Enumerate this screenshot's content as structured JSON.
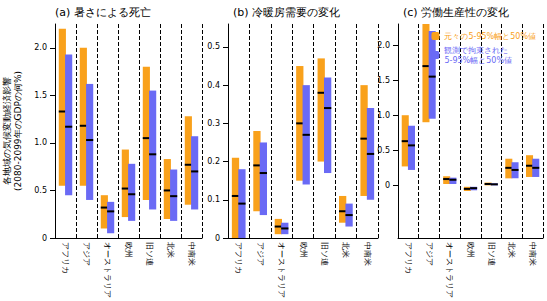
{
  "chart_data": [
    {
      "type": "bar",
      "title": "(a) 暑さによる死亡",
      "ylabel": "各地域の気候変動経済影響\n(2080-2099年のGDPの何%)",
      "categories": [
        "アフリカ",
        "アジア",
        "オーストラリア",
        "欧州",
        "旧ソ連",
        "北米",
        "中南米"
      ],
      "series": [
        {
          "color": "#f9a11b",
          "low": [
            0.55,
            0.55,
            0.1,
            0.22,
            0.4,
            0.2,
            0.35
          ],
          "median": [
            1.33,
            1.18,
            0.32,
            0.52,
            1.05,
            0.5,
            0.77
          ],
          "high": [
            2.2,
            2.0,
            0.45,
            0.93,
            1.8,
            0.83,
            1.28
          ]
        },
        {
          "color": "#6a6af5",
          "low": [
            0.45,
            0.4,
            0.05,
            0.18,
            0.3,
            0.18,
            0.3
          ],
          "median": [
            1.17,
            1.03,
            0.28,
            0.46,
            0.88,
            0.44,
            0.7
          ],
          "high": [
            1.93,
            1.62,
            0.38,
            0.78,
            1.55,
            0.72,
            1.07
          ]
        }
      ],
      "ylim": [
        0,
        2.25
      ],
      "yticks": [
        0,
        0.5,
        {
          "value": 1,
          "label": "1.0"
        },
        1.5,
        {
          "value": 2,
          "label": "2.0"
        }
      ],
      "grid": false
    },
    {
      "type": "bar",
      "title": "(b) 冷暖房需要の変化",
      "categories": [
        "アフリカ",
        "アジア",
        "オーストラリア",
        "欧州",
        "旧ソ連",
        "北米",
        "中南米"
      ],
      "series": [
        {
          "color": "#f9a11b",
          "low": [
            0.0,
            0.07,
            0.01,
            0.15,
            0.2,
            0.04,
            0.11
          ],
          "median": [
            0.11,
            0.19,
            0.03,
            0.3,
            0.38,
            0.07,
            0.26
          ],
          "high": [
            0.21,
            0.28,
            0.05,
            0.45,
            0.47,
            0.11,
            0.4
          ]
        },
        {
          "color": "#6a6af5",
          "low": [
            0.0,
            0.06,
            0.01,
            0.14,
            0.17,
            0.03,
            0.1
          ],
          "median": [
            0.09,
            0.17,
            0.025,
            0.27,
            0.34,
            0.06,
            0.22
          ],
          "high": [
            0.18,
            0.25,
            0.04,
            0.4,
            0.42,
            0.09,
            0.34
          ]
        }
      ],
      "ylim": [
        0,
        0.56
      ],
      "yticks": [
        0,
        0.1,
        0.2,
        0.3,
        0.4,
        0.5
      ],
      "grid": false
    },
    {
      "type": "bar",
      "title": "(c) 労働生産性の変化",
      "categories": [
        "アフリカ",
        "アジア",
        "オーストラリア",
        "欧州",
        "旧ソ連",
        "北米",
        "中南米"
      ],
      "series": [
        {
          "name": "元々の5-95%幅と50%値",
          "color": "#f9a11b",
          "low": [
            0.27,
            0.9,
            0.02,
            -0.08,
            0.0,
            0.1,
            0.12
          ],
          "median": [
            0.63,
            1.7,
            0.09,
            -0.05,
            0.02,
            0.25,
            0.28
          ],
          "high": [
            1.0,
            2.3,
            0.13,
            -0.02,
            0.04,
            0.38,
            0.43
          ]
        },
        {
          "name": "観測で拘束された\n5-95%幅と50%値",
          "color": "#6a6af5",
          "low": [
            0.22,
            0.95,
            0.02,
            -0.07,
            0.0,
            0.1,
            0.12
          ],
          "median": [
            0.57,
            1.55,
            0.08,
            -0.04,
            0.015,
            0.22,
            0.25
          ],
          "high": [
            0.85,
            2.2,
            0.11,
            -0.02,
            0.03,
            0.33,
            0.38
          ]
        }
      ],
      "ylim": [
        -0.75,
        2.3
      ],
      "yticks": [
        0,
        0.5,
        {
          "value": 1,
          "label": "1.0"
        },
        1.5,
        {
          "value": 2,
          "label": "2.0"
        }
      ],
      "legend": "upper right",
      "grid": false
    }
  ]
}
